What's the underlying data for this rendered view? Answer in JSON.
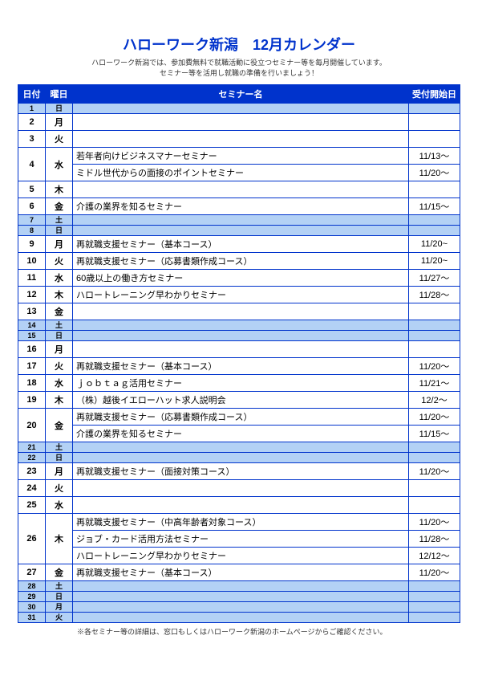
{
  "title": "ハローワーク新潟　12月カレンダー",
  "subtitle_line1": "ハローワーク新潟では、参加費無料で就職活動に役立つセミナー等を毎月開催しています。",
  "subtitle_line2": "セミナー等を活用し就職の準備を行いましょう！",
  "headers": {
    "date": "日付",
    "day": "曜日",
    "seminar": "セミナー名",
    "start": "受付開始日"
  },
  "footnote": "※各セミナー等の詳細は、窓口もしくはハローワーク新潟のホームページからご確認ください。",
  "rows": [
    {
      "date": "1",
      "day": "日",
      "seminar": "",
      "start": "",
      "cls": "weekend-compact"
    },
    {
      "date": "2",
      "day": "月",
      "seminar": "",
      "start": ""
    },
    {
      "date": "3",
      "day": "火",
      "seminar": "",
      "start": ""
    },
    {
      "date": "4",
      "day": "水",
      "seminar": "若年者向けビジネスマナーセミナー",
      "start": "11/13～",
      "rowspan": 2
    },
    {
      "seminar": "ミドル世代からの面接のポイントセミナー",
      "start": "11/20～",
      "sub": true
    },
    {
      "date": "5",
      "day": "木",
      "seminar": "",
      "start": ""
    },
    {
      "date": "6",
      "day": "金",
      "seminar": "介護の業界を知るセミナー",
      "start": "11/15～"
    },
    {
      "date": "7",
      "day": "土",
      "seminar": "",
      "start": "",
      "cls": "weekend-compact"
    },
    {
      "date": "8",
      "day": "日",
      "seminar": "",
      "start": "",
      "cls": "weekend-compact"
    },
    {
      "date": "9",
      "day": "月",
      "seminar": "再就職支援セミナー（基本コース）",
      "start": "11/20~"
    },
    {
      "date": "10",
      "day": "火",
      "seminar": "再就職支援セミナー（応募書類作成コース）",
      "start": "11/20~"
    },
    {
      "date": "11",
      "day": "水",
      "seminar": "60歳以上の働き方セミナー",
      "start": "11/27～"
    },
    {
      "date": "12",
      "day": "木",
      "seminar": "ハロートレーニング早わかりセミナー",
      "start": "11/28～"
    },
    {
      "date": "13",
      "day": "金",
      "seminar": "",
      "start": ""
    },
    {
      "date": "14",
      "day": "土",
      "seminar": "",
      "start": "",
      "cls": "weekend-compact"
    },
    {
      "date": "15",
      "day": "日",
      "seminar": "",
      "start": "",
      "cls": "weekend-compact"
    },
    {
      "date": "16",
      "day": "月",
      "seminar": "",
      "start": ""
    },
    {
      "date": "17",
      "day": "火",
      "seminar": "再就職支援セミナー（基本コース）",
      "start": "11/20～"
    },
    {
      "date": "18",
      "day": "水",
      "seminar": "ｊｏｂｔａｇ活用セミナー",
      "start": "11/21～"
    },
    {
      "date": "19",
      "day": "木",
      "seminar": "（株）越後イエローハット求人説明会",
      "start": "12/2～"
    },
    {
      "date": "20",
      "day": "金",
      "seminar": "再就職支援セミナー（応募書類作成コース）",
      "start": "11/20～",
      "rowspan": 2
    },
    {
      "seminar": "介護の業界を知るセミナー",
      "start": "11/15～",
      "sub": true
    },
    {
      "date": "21",
      "day": "土",
      "seminar": "",
      "start": "",
      "cls": "weekend-compact"
    },
    {
      "date": "22",
      "day": "日",
      "seminar": "",
      "start": "",
      "cls": "weekend-compact"
    },
    {
      "date": "23",
      "day": "月",
      "seminar": "再就職支援セミナー（面接対策コース）",
      "start": "11/20～"
    },
    {
      "date": "24",
      "day": "火",
      "seminar": "",
      "start": ""
    },
    {
      "date": "25",
      "day": "水",
      "seminar": "",
      "start": ""
    },
    {
      "date": "26",
      "day": "木",
      "seminar": "再就職支援セミナー（中高年齢者対象コース）",
      "start": "11/20～",
      "rowspan": 3
    },
    {
      "seminar": "ジョブ・カード活用方法セミナー",
      "start": "11/28～",
      "sub": true
    },
    {
      "seminar": "ハロートレーニング早わかりセミナー",
      "start": "12/12～",
      "sub": true
    },
    {
      "date": "27",
      "day": "金",
      "seminar": "再就職支援セミナー（基本コース）",
      "start": "11/20～"
    },
    {
      "date": "28",
      "day": "土",
      "seminar": "",
      "start": "",
      "cls": "weekend-compact"
    },
    {
      "date": "29",
      "day": "日",
      "seminar": "",
      "start": "",
      "cls": "weekend-compact"
    },
    {
      "date": "30",
      "day": "月",
      "seminar": "",
      "start": "",
      "cls": "weekend-compact"
    },
    {
      "date": "31",
      "day": "火",
      "seminar": "",
      "start": "",
      "cls": "weekend-compact"
    }
  ]
}
